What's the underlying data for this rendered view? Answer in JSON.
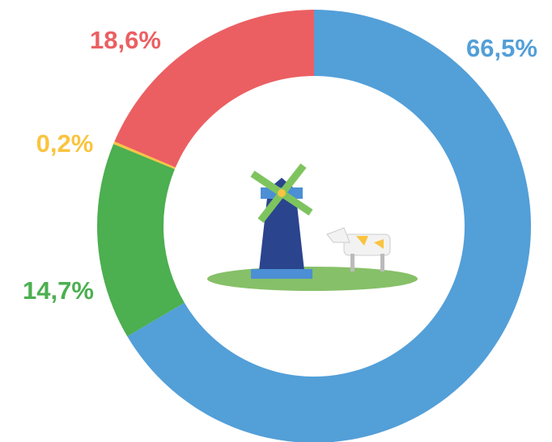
{
  "chart_data": {
    "type": "pie",
    "values": [
      66.5,
      14.7,
      0.2,
      18.6
    ],
    "value_labels": [
      "66,5%",
      "14,7%",
      "0,2%",
      "18,6%"
    ],
    "colors": [
      "#539fd8",
      "#4caf50",
      "#f9c440",
      "#eb5f62"
    ]
  }
}
